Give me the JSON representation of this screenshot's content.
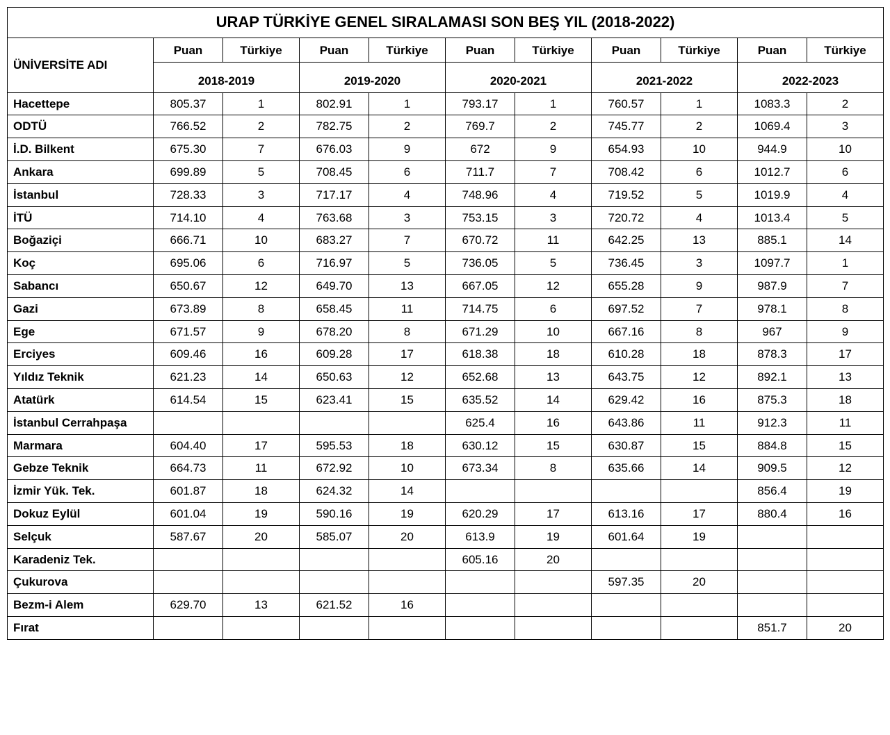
{
  "title": "URAP TÜRKİYE GENEL SIRALAMASI SON BEŞ YIL  (2018-2022)",
  "headers": {
    "university": "ÜNİVERSİTE ADI",
    "score": "Puan",
    "rank": "Türkiye"
  },
  "years": [
    "2018-2019",
    "2019-2020",
    "2020-2021",
    "2021-2022",
    "2022-2023"
  ],
  "rows": [
    {
      "name": "Hacettepe",
      "c": [
        [
          "805.37",
          "1"
        ],
        [
          "802.91",
          "1"
        ],
        [
          "793.17",
          "1"
        ],
        [
          "760.57",
          "1"
        ],
        [
          "1083.3",
          "2"
        ]
      ]
    },
    {
      "name": "ODTÜ",
      "c": [
        [
          "766.52",
          "2"
        ],
        [
          "782.75",
          "2"
        ],
        [
          "769.7",
          "2"
        ],
        [
          "745.77",
          "2"
        ],
        [
          "1069.4",
          "3"
        ]
      ]
    },
    {
      "name": "İ.D. Bilkent",
      "c": [
        [
          "675.30",
          "7"
        ],
        [
          "676.03",
          "9"
        ],
        [
          "672",
          "9"
        ],
        [
          "654.93",
          "10"
        ],
        [
          "944.9",
          "10"
        ]
      ]
    },
    {
      "name": "Ankara",
      "c": [
        [
          "699.89",
          "5"
        ],
        [
          "708.45",
          "6"
        ],
        [
          "711.7",
          "7"
        ],
        [
          "708.42",
          "6"
        ],
        [
          "1012.7",
          "6"
        ]
      ]
    },
    {
      "name": "İstanbul",
      "c": [
        [
          "728.33",
          "3"
        ],
        [
          "717.17",
          "4"
        ],
        [
          "748.96",
          "4"
        ],
        [
          "719.52",
          "5"
        ],
        [
          "1019.9",
          "4"
        ]
      ]
    },
    {
      "name": "İTÜ",
      "c": [
        [
          "714.10",
          "4"
        ],
        [
          "763.68",
          "3"
        ],
        [
          "753.15",
          "3"
        ],
        [
          "720.72",
          "4"
        ],
        [
          "1013.4",
          "5"
        ]
      ]
    },
    {
      "name": "Boğaziçi",
      "c": [
        [
          "666.71",
          "10"
        ],
        [
          "683.27",
          "7"
        ],
        [
          "670.72",
          "11"
        ],
        [
          "642.25",
          "13"
        ],
        [
          "885.1",
          "14"
        ]
      ]
    },
    {
      "name": "Koç",
      "c": [
        [
          "695.06",
          "6"
        ],
        [
          "716.97",
          "5"
        ],
        [
          "736.05",
          "5"
        ],
        [
          "736.45",
          "3"
        ],
        [
          "1097.7",
          "1"
        ]
      ]
    },
    {
      "name": "Sabancı",
      "c": [
        [
          "650.67",
          "12"
        ],
        [
          "649.70",
          "13"
        ],
        [
          "667.05",
          "12"
        ],
        [
          "655.28",
          "9"
        ],
        [
          "987.9",
          "7"
        ]
      ]
    },
    {
      "name": "Gazi",
      "c": [
        [
          "673.89",
          "8"
        ],
        [
          "658.45",
          "11"
        ],
        [
          "714.75",
          "6"
        ],
        [
          "697.52",
          "7"
        ],
        [
          "978.1",
          "8"
        ]
      ]
    },
    {
      "name": "Ege",
      "c": [
        [
          "671.57",
          "9"
        ],
        [
          "678.20",
          "8"
        ],
        [
          "671.29",
          "10"
        ],
        [
          "667.16",
          "8"
        ],
        [
          "967",
          "9"
        ]
      ]
    },
    {
      "name": "Erciyes",
      "c": [
        [
          "609.46",
          "16"
        ],
        [
          "609.28",
          "17"
        ],
        [
          "618.38",
          "18"
        ],
        [
          "610.28",
          "18"
        ],
        [
          "878.3",
          "17"
        ]
      ]
    },
    {
      "name": "Yıldız Teknik",
      "c": [
        [
          "621.23",
          "14"
        ],
        [
          "650.63",
          "12"
        ],
        [
          "652.68",
          "13"
        ],
        [
          "643.75",
          "12"
        ],
        [
          "892.1",
          "13"
        ]
      ]
    },
    {
      "name": "Atatürk",
      "c": [
        [
          "614.54",
          "15"
        ],
        [
          "623.41",
          "15"
        ],
        [
          "635.52",
          "14"
        ],
        [
          "629.42",
          "16"
        ],
        [
          "875.3",
          "18"
        ]
      ]
    },
    {
      "name": "İstanbul Cerrahpaşa",
      "c": [
        [
          "",
          ""
        ],
        [
          "",
          ""
        ],
        [
          "625.4",
          "16"
        ],
        [
          "643.86",
          "11"
        ],
        [
          "912.3",
          "11"
        ]
      ]
    },
    {
      "name": "Marmara",
      "c": [
        [
          "604.40",
          "17"
        ],
        [
          "595.53",
          "18"
        ],
        [
          "630.12",
          "15"
        ],
        [
          "630.87",
          "15"
        ],
        [
          "884.8",
          "15"
        ]
      ]
    },
    {
      "name": "Gebze Teknik",
      "c": [
        [
          "664.73",
          "11"
        ],
        [
          "672.92",
          "10"
        ],
        [
          "673.34",
          "8"
        ],
        [
          "635.66",
          "14"
        ],
        [
          "909.5",
          "12"
        ]
      ]
    },
    {
      "name": "İzmir Yük. Tek.",
      "c": [
        [
          "601.87",
          "18"
        ],
        [
          "624.32",
          "14"
        ],
        [
          "",
          ""
        ],
        [
          "",
          ""
        ],
        [
          "856.4",
          "19"
        ]
      ]
    },
    {
      "name": "Dokuz Eylül",
      "c": [
        [
          "601.04",
          "19"
        ],
        [
          "590.16",
          "19"
        ],
        [
          "620.29",
          "17"
        ],
        [
          "613.16",
          "17"
        ],
        [
          "880.4",
          "16"
        ]
      ]
    },
    {
      "name": "Selçuk",
      "c": [
        [
          "587.67",
          "20"
        ],
        [
          "585.07",
          "20"
        ],
        [
          "613.9",
          "19"
        ],
        [
          "601.64",
          "19"
        ],
        [
          "",
          ""
        ]
      ]
    },
    {
      "name": "Karadeniz Tek.",
      "c": [
        [
          "",
          ""
        ],
        [
          "",
          ""
        ],
        [
          "605.16",
          "20"
        ],
        [
          "",
          ""
        ],
        [
          "",
          ""
        ]
      ]
    },
    {
      "name": "Çukurova",
      "c": [
        [
          "",
          ""
        ],
        [
          "",
          ""
        ],
        [
          "",
          ""
        ],
        [
          "597.35",
          "20"
        ],
        [
          "",
          ""
        ]
      ]
    },
    {
      "name": "Bezm-i Alem",
      "c": [
        [
          "629.70",
          "13"
        ],
        [
          "621.52",
          "16"
        ],
        [
          "",
          ""
        ],
        [
          "",
          ""
        ],
        [
          "",
          ""
        ]
      ]
    },
    {
      "name": "Fırat",
      "c": [
        [
          "",
          ""
        ],
        [
          "",
          ""
        ],
        [
          "",
          ""
        ],
        [
          "",
          ""
        ],
        [
          "851.7",
          "20"
        ]
      ]
    }
  ],
  "style": {
    "border_color": "#000000",
    "background": "#ffffff",
    "title_fontsize": 22,
    "cell_fontsize": 17,
    "font_family": "Arial"
  }
}
